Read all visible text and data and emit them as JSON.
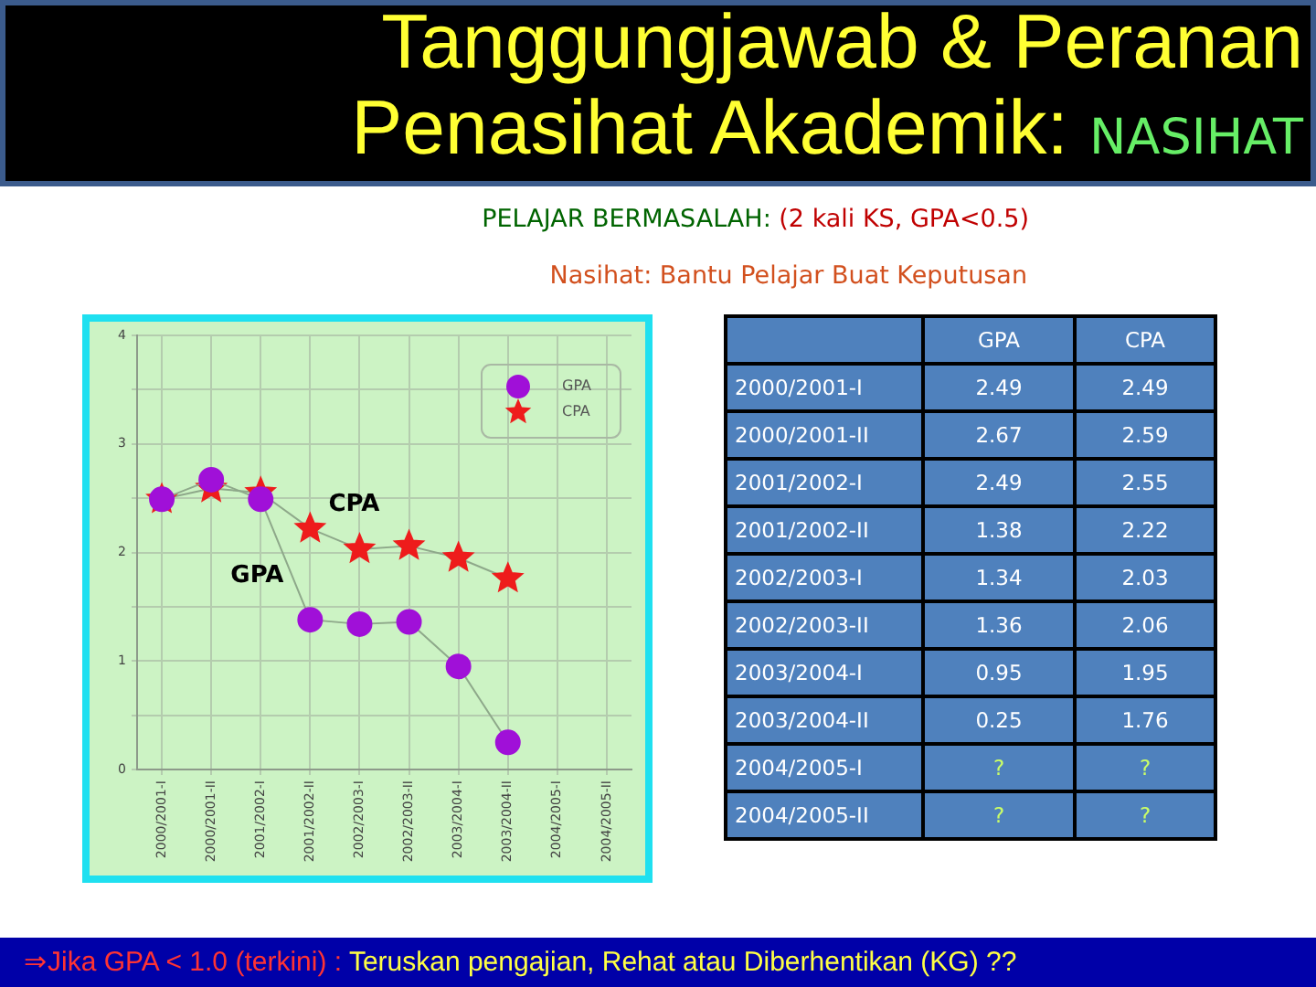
{
  "chart_data": [
    {
      "type": "line",
      "title": "Tanggungjawab & Peranan Penasihat Akademik: NASIHAT",
      "subtitle": "PELAJAR BERMASALAH: (2 kali KS, GPA<0.5)",
      "annotations": [
        "Nasihat: Bantu Pelajar Buat Keputusan",
        "⇒Jika GPA < 1.0 (terkini) : Teruskan pengajian, Rehat atau Diberhentikan (KG) ??"
      ],
      "categories": [
        "2000/2001-I",
        "2000/2001-II",
        "2001/2002-I",
        "2001/2002-II",
        "2002/2003-I",
        "2002/2003-II",
        "2003/2004-I",
        "2003/2004-II",
        "2004/2005-I",
        "2004/2005-II"
      ],
      "series": [
        {
          "name": "GPA",
          "color": "#a010d8",
          "marker": "circle",
          "values": [
            2.49,
            2.67,
            2.49,
            1.38,
            1.34,
            1.36,
            0.95,
            0.25,
            null,
            null
          ]
        },
        {
          "name": "CPA",
          "color": "#ee1c1c",
          "marker": "star",
          "values": [
            2.49,
            2.59,
            2.55,
            2.22,
            2.03,
            2.06,
            1.95,
            1.76,
            null,
            null
          ]
        }
      ],
      "ylim": [
        0,
        4
      ],
      "yticks": [
        0,
        {
          "value": 0.5,
          "label": null
        },
        1,
        {
          "value": 1.5,
          "label": null
        },
        2,
        {
          "value": 2.5,
          "label": null
        },
        3,
        {
          "value": 3.5,
          "label": null
        },
        4
      ],
      "grid": true,
      "legend": "top right"
    },
    {
      "type": "other",
      "categories": [
        "2000/2001-I",
        "2000/2001-II",
        "2001/2002-I",
        "2001/2002-II",
        "2002/2003-I",
        "2002/2003-II",
        "2003/2004-I",
        "2003/2004-II",
        "2004/2005-I",
        "2004/2005-II"
      ],
      "series": [
        {
          "name": "GPA",
          "values": [
            2.49,
            2.67,
            2.49,
            1.38,
            1.34,
            1.36,
            0.95,
            0.25,
            null,
            null
          ],
          "value_labels": [
            "2.49",
            "2.67",
            "2.49",
            "1.38",
            "1.34",
            "1.36",
            "0.95",
            "0.25",
            "?",
            "?"
          ]
        },
        {
          "name": "CPA",
          "values": [
            2.49,
            2.59,
            2.55,
            2.22,
            2.03,
            2.06,
            1.95,
            1.76,
            null,
            null
          ],
          "value_labels": [
            "2.49",
            "2.59",
            "2.55",
            "2.22",
            "2.03",
            "2.06",
            "1.95",
            "1.76",
            "?",
            "?"
          ]
        }
      ]
    }
  ]
}
